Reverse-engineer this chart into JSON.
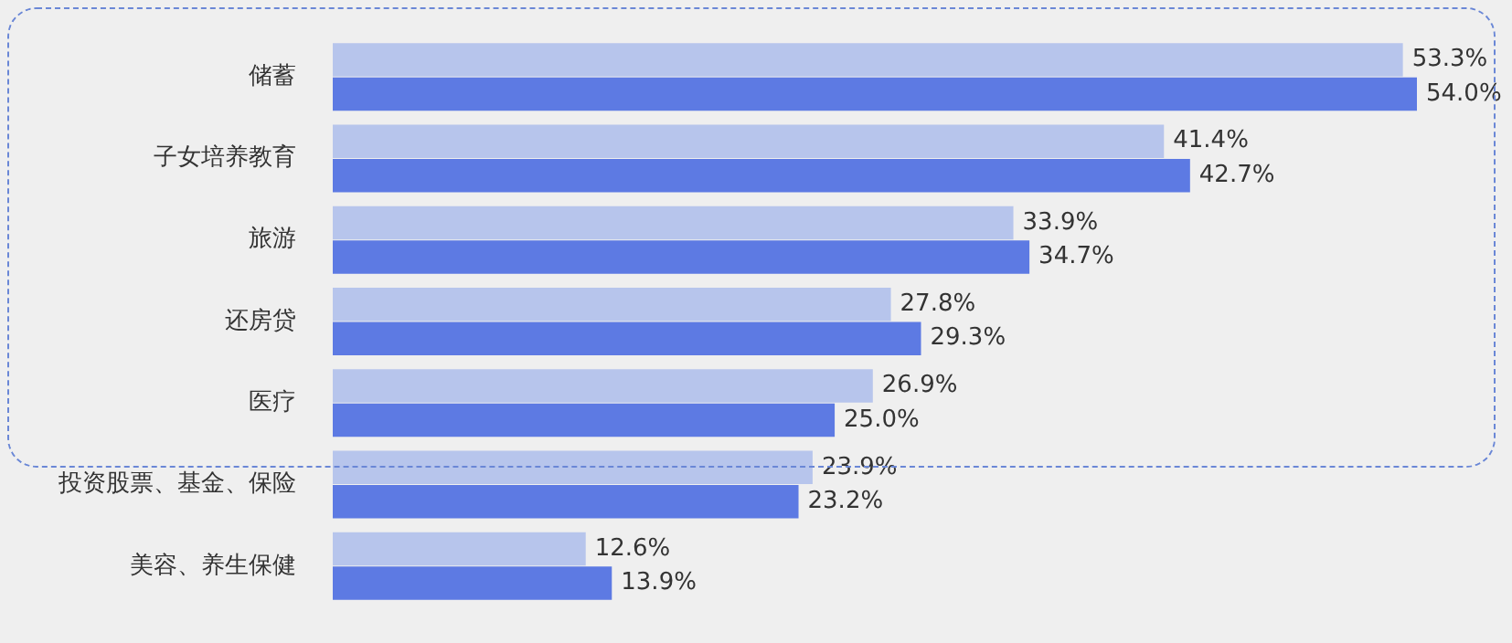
{
  "chart_data": {
    "type": "bar",
    "orientation": "horizontal",
    "categories": [
      "储蓄",
      "子女培养教育",
      "旅游",
      "还房贷",
      "医疗",
      "投资股票、基金、保险",
      "美容、养生保健"
    ],
    "series": [
      {
        "color": "#b7c5ec",
        "values": [
          53.3,
          41.4,
          33.9,
          27.8,
          26.9,
          23.9,
          12.6
        ],
        "value_labels": [
          "53.3%",
          "41.4%",
          "33.9%",
          "27.8%",
          "26.9%",
          "23.9%",
          "12.6%"
        ]
      },
      {
        "color": "#5d7ae3",
        "values": [
          54.0,
          42.7,
          34.7,
          29.3,
          25.0,
          23.2,
          13.9
        ],
        "value_labels": [
          "54.0%",
          "42.7%",
          "34.7%",
          "29.3%",
          "25.0%",
          "23.2%",
          "13.9%"
        ]
      }
    ],
    "legend": false
  }
}
